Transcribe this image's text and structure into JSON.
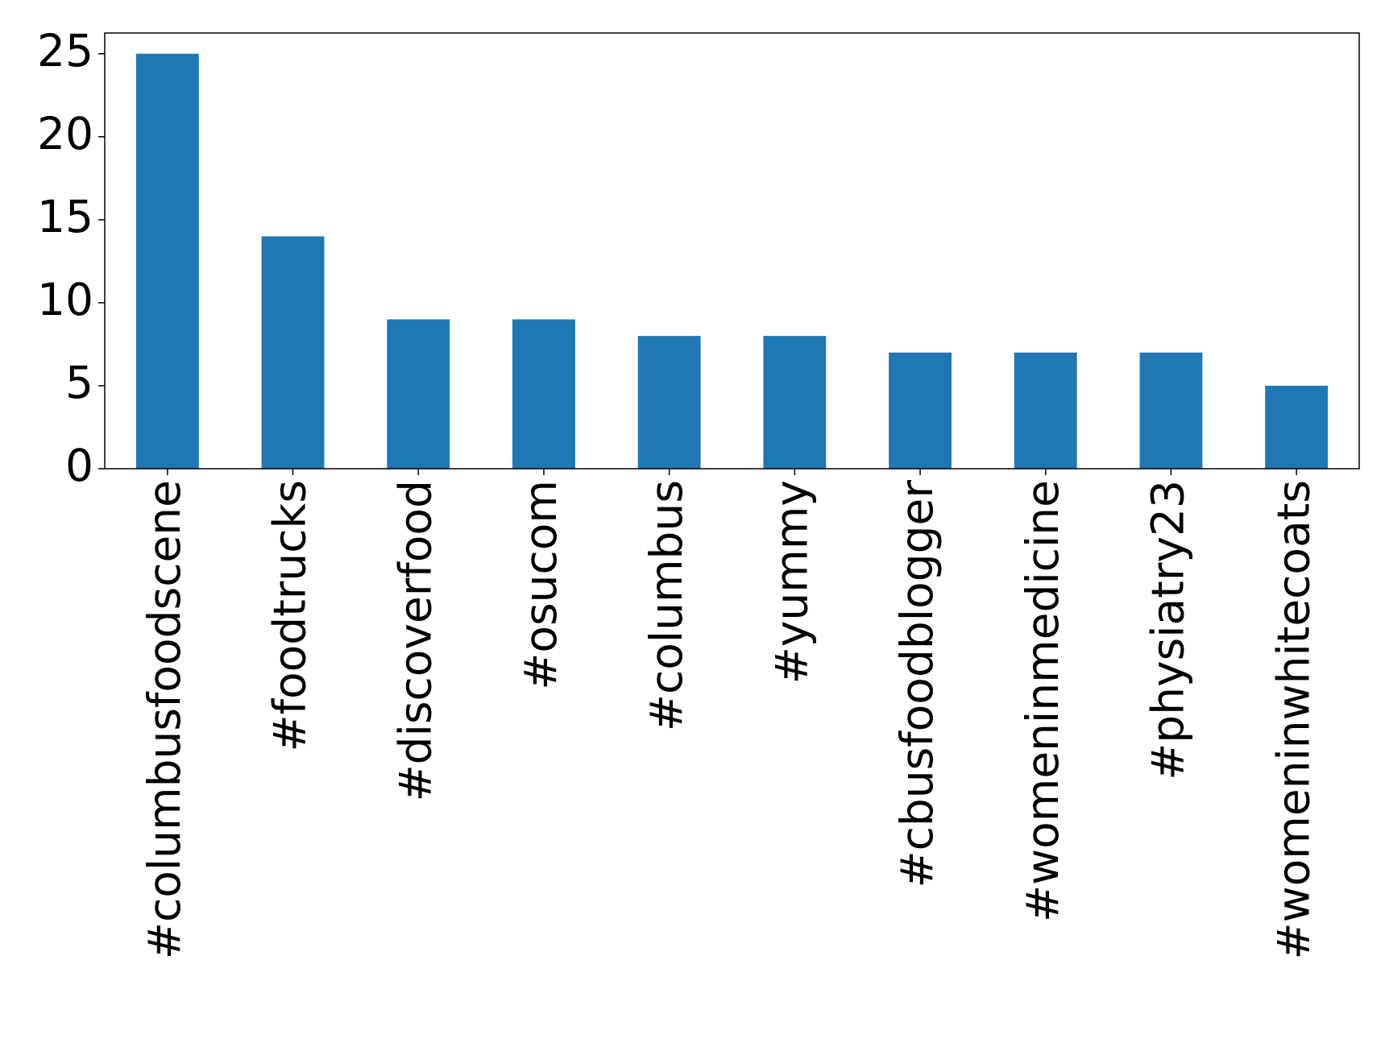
{
  "chart_data": {
    "type": "bar",
    "categories": [
      "#columbusfoodscene",
      "#foodtrucks",
      "#discoverfood",
      "#osucom",
      "#columbus",
      "#yummy",
      "#cbusfoodblogger",
      "#womeninmedicine",
      "#physiatry23",
      "#womeninwhitecoats"
    ],
    "values": [
      25,
      14,
      9,
      9,
      8,
      8,
      7,
      7,
      7,
      5
    ],
    "color": "#1f77b4",
    "ylim": [
      0,
      26.25
    ],
    "yticks": [
      0,
      5,
      10,
      15,
      20,
      25
    ],
    "grid": false
  }
}
